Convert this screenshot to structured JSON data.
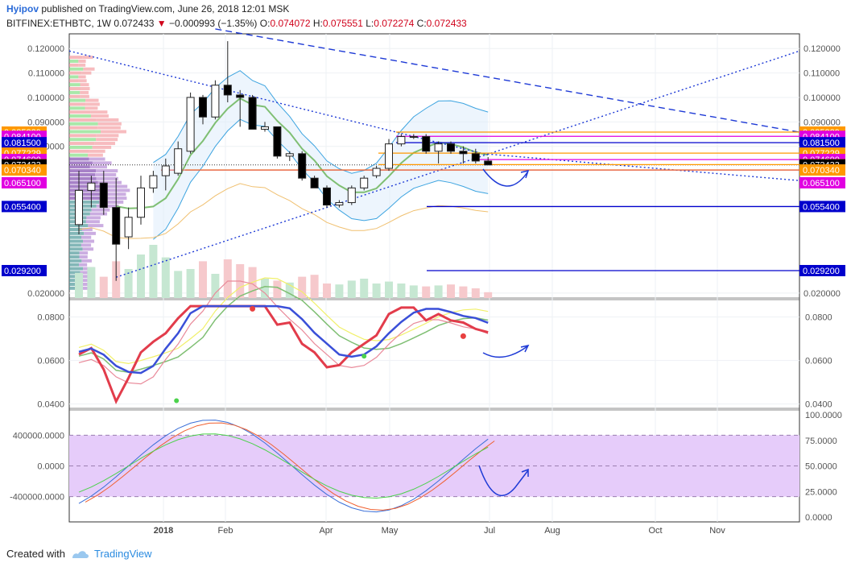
{
  "header": {
    "author": "Hyipov",
    "published": "published on TradingView.com, June 26, 2018 12:01 MSK",
    "symbol": "BITFINEX:ETHBTC, 1W",
    "last": "0.072433",
    "change": "−0.000993 (−1.35%)",
    "o_label": "O:",
    "o_value": "0.074072",
    "h_label": "H:",
    "h_value": "0.075551",
    "l_label": "L:",
    "l_value": "0.072274",
    "c_label": "C:",
    "c_value": "0.072433"
  },
  "footer": {
    "created_with": "Created with",
    "brand": "TradingView"
  },
  "colors": {
    "up_candle": "#ffffff",
    "down_candle": "#000000",
    "rsi_shade": "#e6ccfa",
    "grid": "#e9eef2"
  },
  "chart_data": [
    {
      "type": "candlestick",
      "panel": "price",
      "x_labels": [
        "2018",
        "Feb",
        "Apr",
        "May",
        "Jul",
        "Aug",
        "Oct",
        "Nov"
      ],
      "y_ticks": [
        "0.120000",
        "0.110000",
        "0.100000",
        "0.090000",
        "0.080000",
        "0.020000"
      ],
      "ylim": [
        0.018,
        0.126
      ],
      "candles": [
        {
          "o": 0.048,
          "h": 0.07,
          "l": 0.044,
          "c": 0.062
        },
        {
          "o": 0.062,
          "h": 0.068,
          "l": 0.055,
          "c": 0.065
        },
        {
          "o": 0.065,
          "h": 0.07,
          "l": 0.052,
          "c": 0.055
        },
        {
          "o": 0.055,
          "h": 0.067,
          "l": 0.025,
          "c": 0.04
        },
        {
          "o": 0.043,
          "h": 0.055,
          "l": 0.038,
          "c": 0.051
        },
        {
          "o": 0.051,
          "h": 0.068,
          "l": 0.048,
          "c": 0.063
        },
        {
          "o": 0.063,
          "h": 0.07,
          "l": 0.061,
          "c": 0.068
        },
        {
          "o": 0.068,
          "h": 0.075,
          "l": 0.062,
          "c": 0.072
        },
        {
          "o": 0.069,
          "h": 0.082,
          "l": 0.068,
          "c": 0.079
        },
        {
          "o": 0.078,
          "h": 0.102,
          "l": 0.077,
          "c": 0.1
        },
        {
          "o": 0.1,
          "h": 0.101,
          "l": 0.089,
          "c": 0.092
        },
        {
          "o": 0.092,
          "h": 0.107,
          "l": 0.091,
          "c": 0.105
        },
        {
          "o": 0.105,
          "h": 0.123,
          "l": 0.098,
          "c": 0.101
        },
        {
          "o": 0.101,
          "h": 0.103,
          "l": 0.088,
          "c": 0.1
        },
        {
          "o": 0.1,
          "h": 0.101,
          "l": 0.087,
          "c": 0.087
        },
        {
          "o": 0.087,
          "h": 0.09,
          "l": 0.086,
          "c": 0.088
        },
        {
          "o": 0.088,
          "h": 0.088,
          "l": 0.075,
          "c": 0.076
        },
        {
          "o": 0.076,
          "h": 0.078,
          "l": 0.074,
          "c": 0.077
        },
        {
          "o": 0.077,
          "h": 0.078,
          "l": 0.066,
          "c": 0.067
        },
        {
          "o": 0.067,
          "h": 0.068,
          "l": 0.063,
          "c": 0.063
        },
        {
          "o": 0.063,
          "h": 0.064,
          "l": 0.055,
          "c": 0.056
        },
        {
          "o": 0.056,
          "h": 0.058,
          "l": 0.055,
          "c": 0.057
        },
        {
          "o": 0.057,
          "h": 0.064,
          "l": 0.056,
          "c": 0.063
        },
        {
          "o": 0.063,
          "h": 0.068,
          "l": 0.062,
          "c": 0.067
        },
        {
          "o": 0.068,
          "h": 0.072,
          "l": 0.067,
          "c": 0.071
        },
        {
          "o": 0.071,
          "h": 0.083,
          "l": 0.07,
          "c": 0.081
        },
        {
          "o": 0.081,
          "h": 0.085,
          "l": 0.08,
          "c": 0.084
        },
        {
          "o": 0.084,
          "h": 0.085,
          "l": 0.083,
          "c": 0.084
        },
        {
          "o": 0.084,
          "h": 0.085,
          "l": 0.077,
          "c": 0.078
        },
        {
          "o": 0.078,
          "h": 0.082,
          "l": 0.073,
          "c": 0.081
        },
        {
          "o": 0.081,
          "h": 0.082,
          "l": 0.077,
          "c": 0.078
        },
        {
          "o": 0.078,
          "h": 0.08,
          "l": 0.073,
          "c": 0.077
        },
        {
          "o": 0.077,
          "h": 0.079,
          "l": 0.073,
          "c": 0.074
        },
        {
          "o": 0.074,
          "h": 0.0756,
          "l": 0.0723,
          "c": 0.0724
        }
      ],
      "volumes": [
        0.26,
        0.32,
        0.22,
        0.38,
        0.3,
        0.45,
        0.55,
        0.42,
        0.28,
        0.3,
        0.38,
        0.25,
        0.4,
        0.35,
        0.32,
        0.2,
        0.18,
        0.16,
        0.22,
        0.24,
        0.15,
        0.14,
        0.18,
        0.2,
        0.15,
        0.17,
        0.15,
        0.13,
        0.12,
        0.13,
        0.14,
        0.12,
        0.1,
        0.06
      ],
      "price_labels": [
        {
          "text": "0.085829",
          "value": 0.085829,
          "bg": "#ff9800",
          "fg": "#ffffff"
        },
        {
          "text": "0.084100",
          "value": 0.0841,
          "bg": "#e100e1",
          "fg": "#ffffff"
        },
        {
          "text": "0.081500",
          "value": 0.0815,
          "bg": "#0000cc",
          "fg": "#ffffff"
        },
        {
          "text": "0.077229",
          "value": 0.077229,
          "bg": "#ff9800",
          "fg": "#ffffff"
        },
        {
          "text": "0.074600",
          "value": 0.0746,
          "bg": "#e100e1",
          "fg": "#ffffff"
        },
        {
          "text": "0.072523",
          "value": 0.072523,
          "bg": "#ff9800",
          "fg": "#ffffff"
        },
        {
          "text": "0.072433",
          "value": 0.072433,
          "bg": "#000000",
          "fg": "#ffffff"
        },
        {
          "text": "0.070340",
          "value": 0.07034,
          "bg": "#ff9800",
          "fg": "#ffffff"
        },
        {
          "text": "0.065100",
          "value": 0.0651,
          "bg": "#e100e1",
          "fg": "#ffffff"
        },
        {
          "text": "0.055400",
          "value": 0.0554,
          "bg": "#0000cc",
          "fg": "#ffffff"
        },
        {
          "text": "0.029200",
          "value": 0.0292,
          "bg": "#0000cc",
          "fg": "#ffffff"
        }
      ]
    },
    {
      "type": "line",
      "panel": "moving-averages",
      "y_ticks": [
        "0.0800",
        "0.0600",
        "0.0400"
      ],
      "ylim": [
        0.038,
        0.088
      ]
    },
    {
      "type": "line",
      "panel": "oscillator",
      "left_ticks": [
        "400000.0000",
        "0.0000",
        "-400000.0000"
      ],
      "right_ticks": [
        "100.0000",
        "75.0000",
        "50.0000",
        "25.0000",
        "0.0000"
      ],
      "right_ylim": [
        0,
        100
      ],
      "band": [
        20,
        80
      ]
    }
  ]
}
